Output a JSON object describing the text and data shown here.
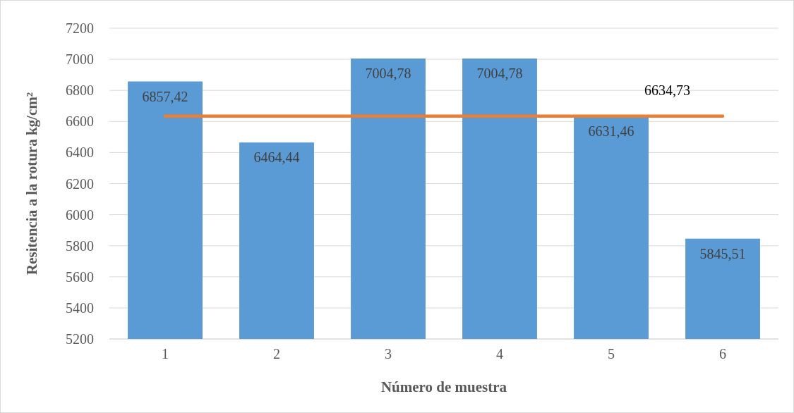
{
  "chart_data": {
    "type": "bar",
    "xlabel": "Número de muestra",
    "ylabel": "Resitencia a la rotura kg/cm²",
    "categories": [
      "1",
      "2",
      "3",
      "4",
      "5",
      "6"
    ],
    "values": [
      6857.42,
      6464.44,
      7004.78,
      7004.78,
      6631.46,
      5845.51
    ],
    "value_labels": [
      "6857,42",
      "6464,44",
      "7004,78",
      "7004,78",
      "6631,46",
      "5845,51"
    ],
    "color": "#5b9bd5",
    "ylim": [
      5200,
      7200
    ],
    "yticks": [
      5200,
      5400,
      5600,
      5800,
      6000,
      6200,
      6400,
      6600,
      6800,
      7000,
      7200
    ],
    "grid": "y",
    "ref_lines": [
      {
        "axis": "y",
        "value": 6634.73,
        "label": "6634,73",
        "color": "#ed7d31"
      }
    ]
  }
}
